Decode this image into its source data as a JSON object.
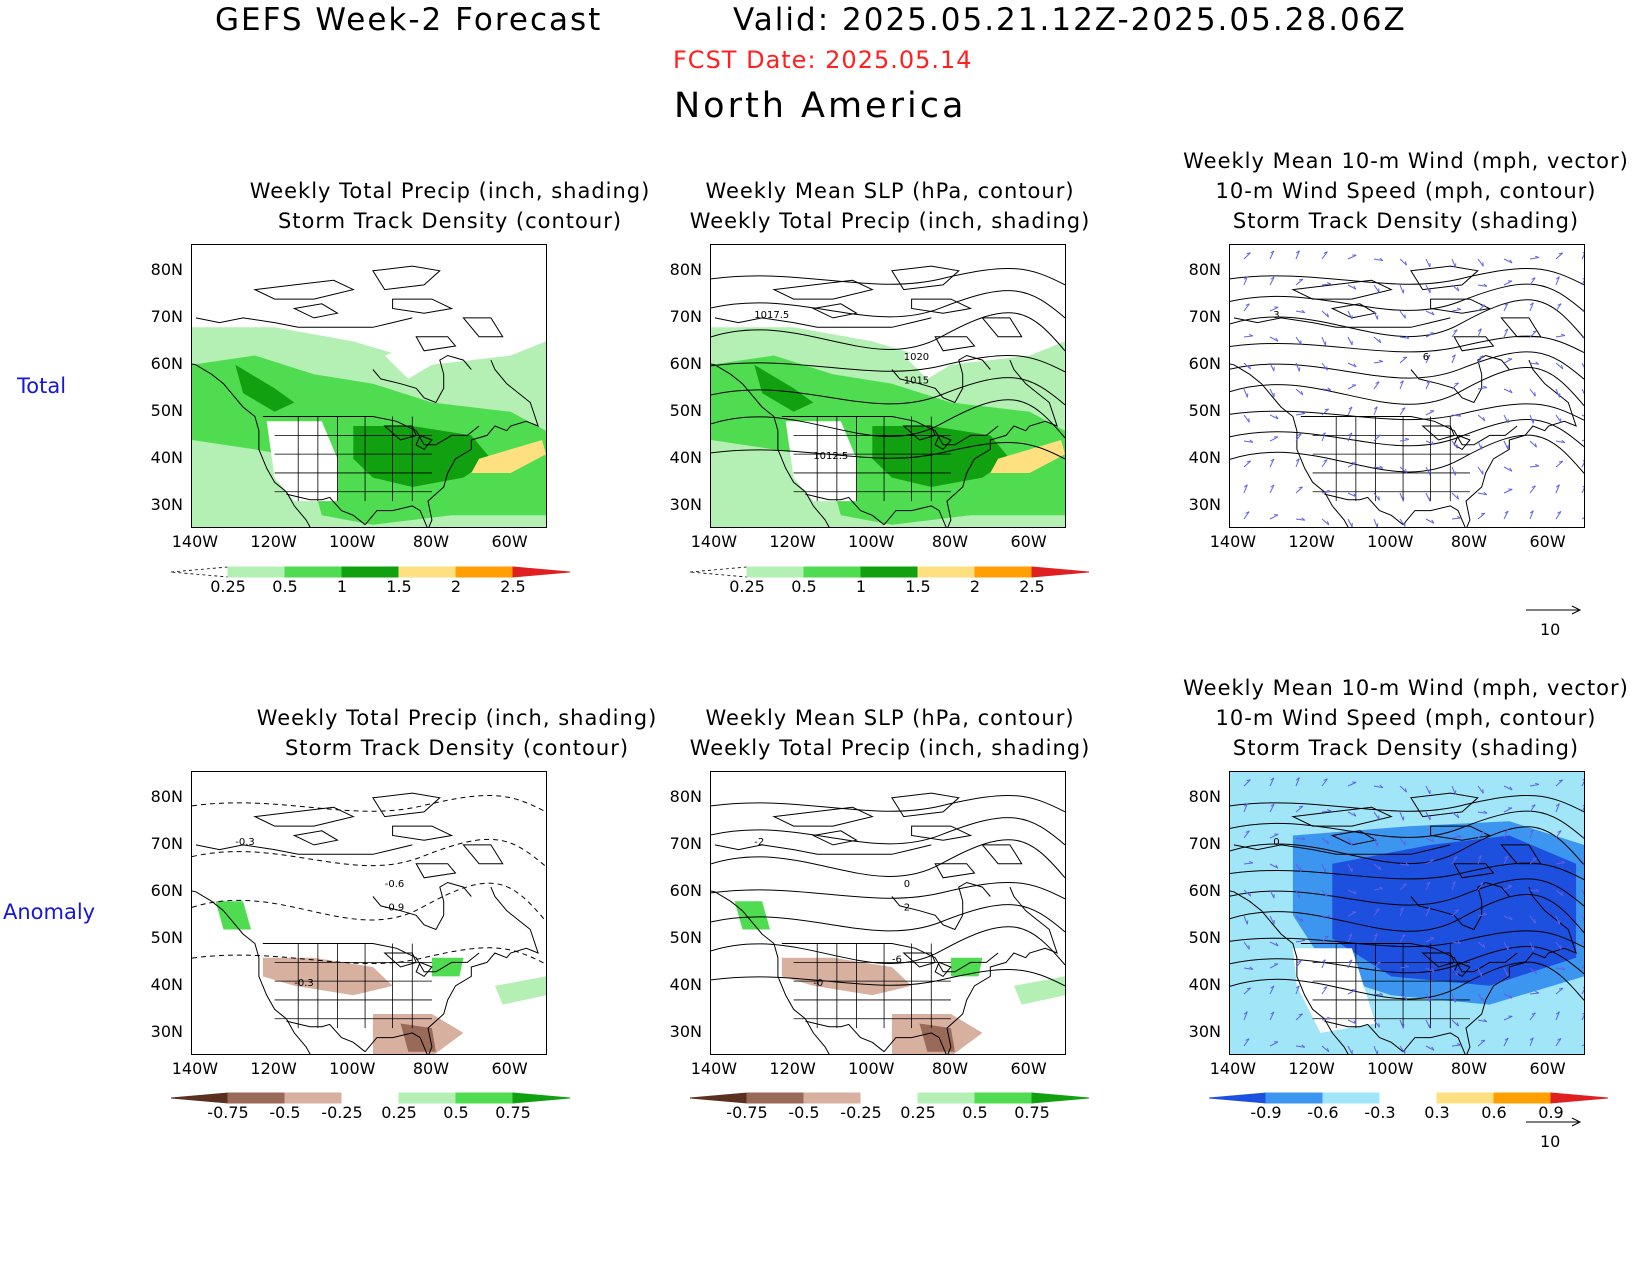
{
  "header": {
    "title": "GEFS Week-2 Forecast",
    "valid": "Valid: 2025.05.21.12Z-2025.05.28.06Z",
    "fcst_date": "FCST Date: 2025.05.14",
    "region": "North America"
  },
  "rows": {
    "total": "Total",
    "anomaly": "Anomaly"
  },
  "panel_titles": {
    "p1": [
      "Weekly Total Precip (inch, shading)",
      "Storm Track Density (contour)"
    ],
    "p2": [
      "Weekly Mean SLP (hPa, contour)",
      "Weekly Total Precip (inch, shading)"
    ],
    "p3": [
      "Weekly Mean 10-m Wind (mph, vector)",
      "10-m Wind Speed (mph, contour)",
      "Storm Track Density (shading)"
    ],
    "p4": [
      "Weekly Total Precip (inch, shading)",
      "Storm Track Density (contour)"
    ],
    "p5": [
      "Weekly Mean SLP (hPa, contour)",
      "Weekly Total Precip (inch, shading)"
    ],
    "p6": [
      "Weekly Mean 10-m Wind (mph, vector)",
      "10-m Wind Speed (mph, contour)",
      "Storm Track Density (shading)"
    ]
  },
  "axes": {
    "lat_ticks": [
      "80N",
      "70N",
      "60N",
      "50N",
      "40N",
      "30N"
    ],
    "lon_ticks": [
      "140W",
      "120W",
      "100W",
      "80W",
      "60W"
    ]
  },
  "colorbars": {
    "precip_total": {
      "labels": [
        "0.25",
        "0.5",
        "1",
        "1.5",
        "2",
        "2.5"
      ],
      "colors": [
        "#b4f0b4",
        "#50dc50",
        "#10a010",
        "#ffe080",
        "#ffa000",
        "#e02020"
      ]
    },
    "precip_anom": {
      "labels": [
        "-0.75",
        "-0.5",
        "-0.25",
        "0.25",
        "0.5",
        "0.75"
      ],
      "colors": [
        "#5a3020",
        "#9a6a58",
        "#d8b0a0",
        "#ffffff",
        "#b4f0b4",
        "#50dc50",
        "#10a010"
      ]
    },
    "wind_anom": {
      "labels": [
        "-0.9",
        "-0.6",
        "-0.3",
        "0.3",
        "0.6",
        "0.9"
      ],
      "colors": [
        "#1e50e0",
        "#3c96f0",
        "#a0e6f8",
        "#ffffff",
        "#ffe080",
        "#ffa000",
        "#e02020"
      ]
    }
  },
  "contour_labels": {
    "slp_total": [
      "1017.5",
      "1020",
      "1015",
      "1012.5"
    ],
    "slp_anom": [
      "-2",
      "0",
      "2",
      "-0",
      "-6"
    ],
    "storm_anom": [
      "-0.3",
      "-0.6",
      "-0.9",
      "-0.3"
    ],
    "wind_total": [
      "3",
      "6"
    ],
    "wind_anom": [
      "0"
    ]
  },
  "vector_reference": "10",
  "colors": {
    "green_light": "#b4f0b4",
    "green_mid": "#50dc50",
    "green_dark": "#10a010",
    "yellow": "#ffe080",
    "brown_light": "#d8b0a0",
    "brown_mid": "#9a6a58",
    "blue_light": "#a0e6f8",
    "blue_mid": "#3c96f0",
    "blue_dark": "#1e50e0",
    "vector": "#6060e8"
  }
}
